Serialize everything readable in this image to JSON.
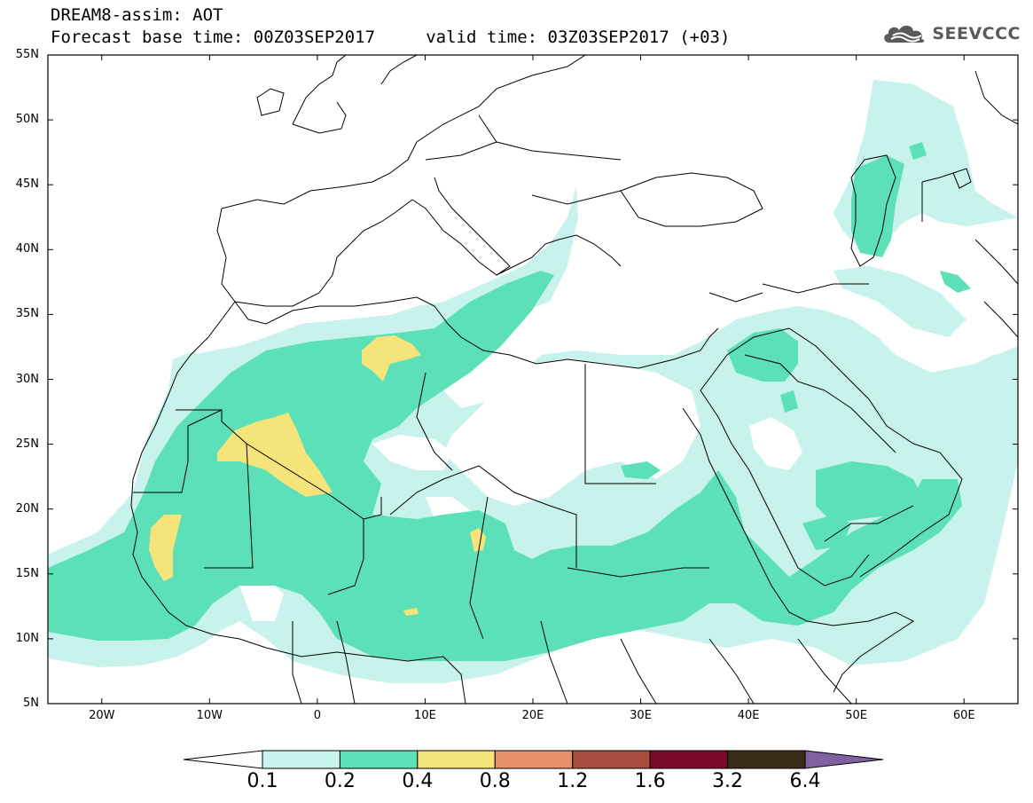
{
  "header": {
    "title_line_1": "DREAM8-assim: AOT",
    "title_line_2": "Forecast base time: 00Z03SEP2017     valid time: 03Z03SEP2017 (+03)"
  },
  "logo": {
    "icon": "cloud-icon",
    "text": "SEEVCCC"
  },
  "map": {
    "lat_range": [
      5,
      55
    ],
    "lon_range": [
      -25,
      65
    ],
    "lat_ticks": [
      {
        "value": 55,
        "label": "55N"
      },
      {
        "value": 50,
        "label": "50N"
      },
      {
        "value": 45,
        "label": "45N"
      },
      {
        "value": 40,
        "label": "40N"
      },
      {
        "value": 35,
        "label": "35N"
      },
      {
        "value": 30,
        "label": "30N"
      },
      {
        "value": 25,
        "label": "25N"
      },
      {
        "value": 20,
        "label": "20N"
      },
      {
        "value": 15,
        "label": "15N"
      },
      {
        "value": 10,
        "label": "10N"
      },
      {
        "value": 5,
        "label": "5N"
      }
    ],
    "lon_ticks": [
      {
        "value": -20,
        "label": "20W"
      },
      {
        "value": -10,
        "label": "10W"
      },
      {
        "value": 0,
        "label": "0"
      },
      {
        "value": 10,
        "label": "10E"
      },
      {
        "value": 20,
        "label": "20E"
      },
      {
        "value": 30,
        "label": "30E"
      },
      {
        "value": 40,
        "label": "40E"
      },
      {
        "value": 50,
        "label": "50E"
      },
      {
        "value": 60,
        "label": "60E"
      }
    ]
  },
  "colorbar": {
    "levels": [
      "0.1",
      "0.2",
      "0.4",
      "0.8",
      "1.2",
      "1.6",
      "3.2",
      "6.4"
    ],
    "colors": [
      "#c8f2ec",
      "#5ce0b8",
      "#f5e47a",
      "#e8906a",
      "#a84e40",
      "#7a0a2c",
      "#3a2a18",
      "#8060a0"
    ]
  },
  "colors": {
    "aot_0_1": "#c8f2ec",
    "aot_0_2": "#5ce0b8",
    "aot_0_4": "#f5e47a",
    "coastline": "#000000",
    "logo_gray": "#5a5a5a"
  }
}
